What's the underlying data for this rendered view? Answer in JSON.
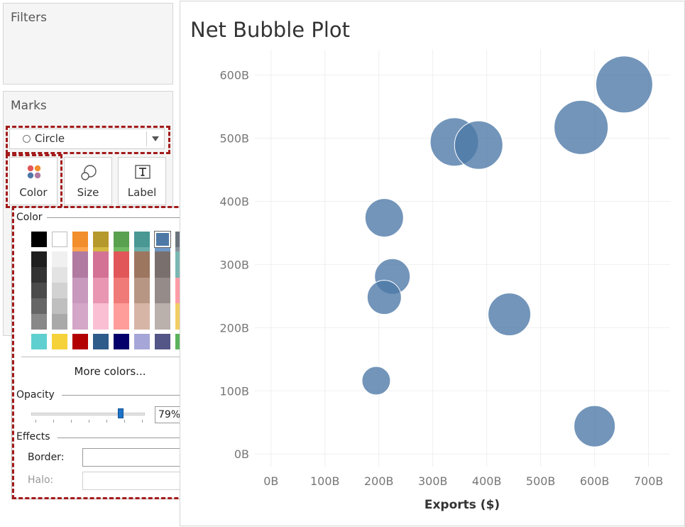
{
  "filters": {
    "title": "Filters"
  },
  "marks": {
    "title": "Marks",
    "mark_type": "Circle",
    "buttons": [
      {
        "label": "Color",
        "icon": "color-dots-icon"
      },
      {
        "label": "Size",
        "icon": "size-circles-icon"
      },
      {
        "label": "Label",
        "icon": "label-t-icon"
      }
    ]
  },
  "color_popup": {
    "color_label": "Color",
    "more_colors": "More colors...",
    "opacity_label": "Opacity",
    "opacity_value": "79%",
    "opacity_fraction": 0.79,
    "effects_label": "Effects",
    "border_label": "Border:",
    "halo_label": "Halo:",
    "selected_color": "#4e79a7",
    "bottom_row": [
      "#5fcfcf",
      "#f6d23a",
      "#b30000",
      "#2d5c8a",
      "#04006b",
      "#a6a6d8",
      "#545687",
      "#5bb35b"
    ]
  },
  "chart_data": {
    "type": "scatter",
    "title": "Net Bubble Plot",
    "xlabel": "Exports ($)",
    "ylabel": "",
    "xlim": [
      -30,
      740
    ],
    "ylim": [
      -20,
      640
    ],
    "x_ticks": [
      0,
      100,
      200,
      300,
      400,
      500,
      600,
      700
    ],
    "x_tick_labels": [
      "0B",
      "100B",
      "200B",
      "300B",
      "400B",
      "500B",
      "600B",
      "700B"
    ],
    "y_ticks": [
      0,
      100,
      200,
      300,
      400,
      500,
      600
    ],
    "y_tick_labels": [
      "0B",
      "100B",
      "200B",
      "300B",
      "400B",
      "500B",
      "600B"
    ],
    "grid": true,
    "marker_color": "#4e79a7",
    "marker_opacity": 0.79,
    "points": [
      {
        "x": 655,
        "y": 585,
        "size": 40
      },
      {
        "x": 575,
        "y": 517,
        "size": 38
      },
      {
        "x": 340,
        "y": 494,
        "size": 34
      },
      {
        "x": 385,
        "y": 489,
        "size": 34
      },
      {
        "x": 210,
        "y": 374,
        "size": 27
      },
      {
        "x": 225,
        "y": 281,
        "size": 25
      },
      {
        "x": 210,
        "y": 248,
        "size": 24
      },
      {
        "x": 442,
        "y": 221,
        "size": 30
      },
      {
        "x": 195,
        "y": 116,
        "size": 20
      },
      {
        "x": 600,
        "y": 44,
        "size": 29
      }
    ]
  }
}
